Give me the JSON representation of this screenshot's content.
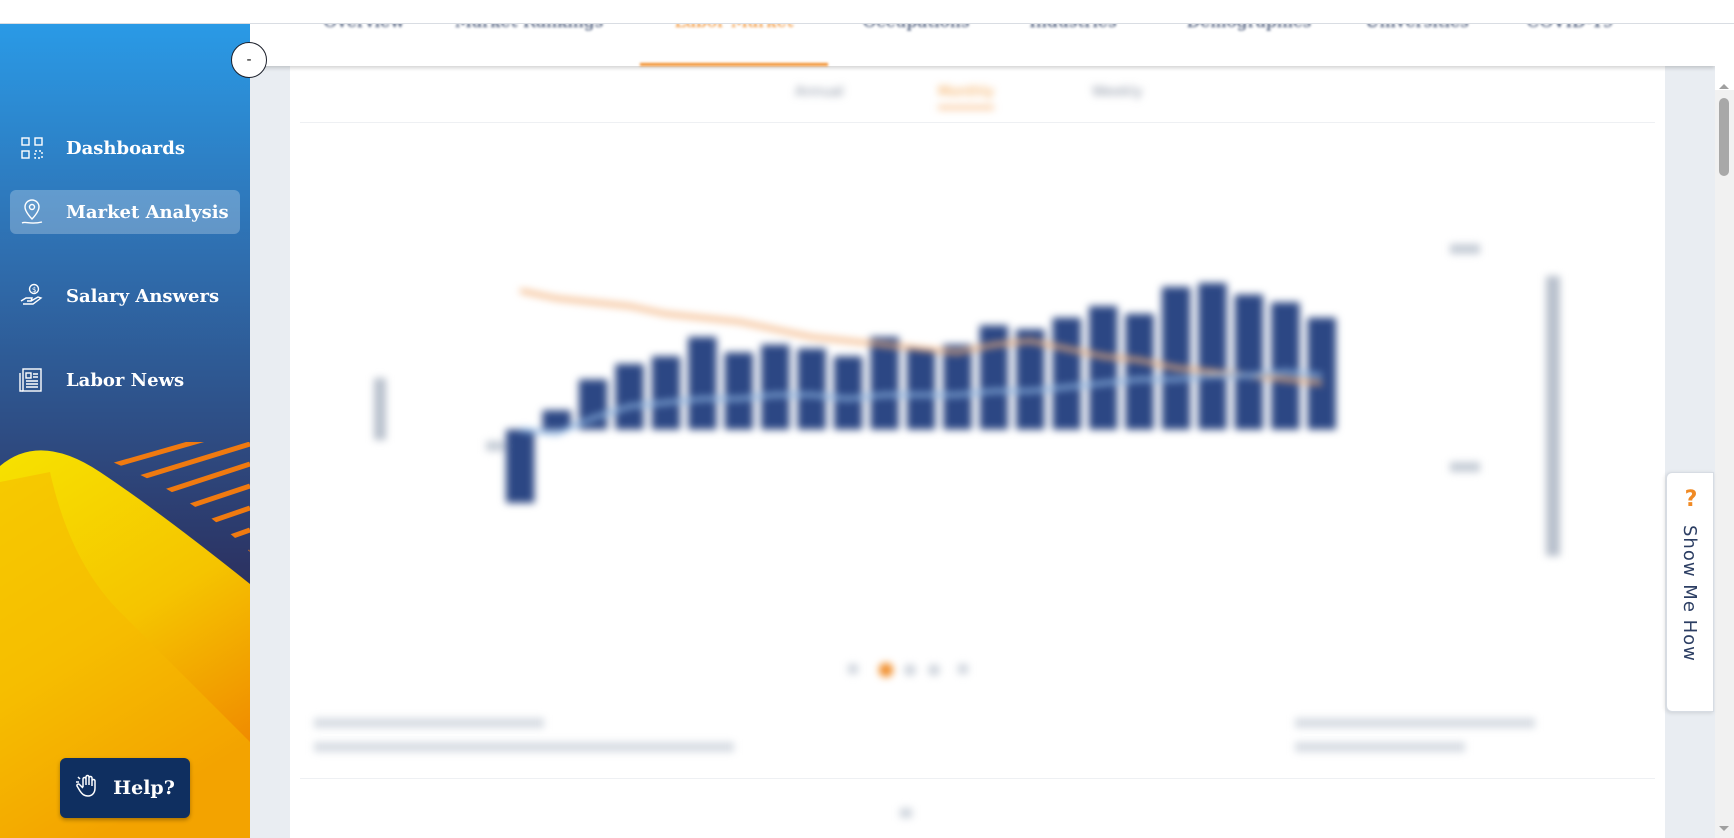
{
  "sidebar": {
    "collapse_label": "-",
    "items": [
      {
        "label": "Dashboards",
        "icon": "dashboard-grid-icon",
        "active": false
      },
      {
        "label": "Market Analysis",
        "icon": "map-pin-icon",
        "active": true
      },
      {
        "label": "Salary Answers",
        "icon": "hand-coin-icon",
        "active": false
      },
      {
        "label": "Labor News",
        "icon": "newspaper-icon",
        "active": false
      }
    ],
    "help_label": "Help?",
    "help_icon": "hand-wave-icon"
  },
  "tabs": [
    {
      "label": "Overview",
      "active": false
    },
    {
      "label": "Market Rankings",
      "active": false
    },
    {
      "label": "Labor Market",
      "active": true
    },
    {
      "label": "Occupations",
      "active": false
    },
    {
      "label": "Industries",
      "active": false
    },
    {
      "label": "Demographics",
      "active": false
    },
    {
      "label": "Universities",
      "active": false
    },
    {
      "label": "COVID-19",
      "active": false
    }
  ],
  "subtabs": [
    {
      "label": "Annual",
      "active": false
    },
    {
      "label": "Monthly",
      "active": true
    },
    {
      "label": "Weekly",
      "active": false
    }
  ],
  "chart_data": {
    "type": "bar",
    "title": "",
    "xlabel": "",
    "ylabel": "",
    "series": [
      {
        "type": "bar",
        "values": [
          -1.9,
          0.5,
          1.3,
          1.7,
          1.9,
          2.4,
          2.0,
          2.2,
          2.1,
          1.9,
          2.4,
          2.1,
          2.2,
          2.7,
          2.6,
          2.9,
          3.2,
          3.0,
          3.7,
          3.8,
          3.5,
          3.3,
          2.9
        ]
      },
      {
        "type": "line",
        "values": [
          3.6,
          3.4,
          3.3,
          3.2,
          3.0,
          2.9,
          2.8,
          2.6,
          2.4,
          2.3,
          2.2,
          2.1,
          2.0,
          2.2,
          2.3,
          2.1,
          1.9,
          1.8,
          1.6,
          1.5,
          1.4,
          1.3,
          1.2
        ]
      },
      {
        "type": "line",
        "values": [
          0.0,
          -0.1,
          0.3,
          0.6,
          0.7,
          0.8,
          0.8,
          0.9,
          0.9,
          0.8,
          0.9,
          0.9,
          0.9,
          1.0,
          1.0,
          1.1,
          1.2,
          1.3,
          1.3,
          1.4,
          1.4,
          1.5,
          1.4
        ]
      }
    ],
    "colors": {
      "bars": "#2c4784",
      "line_primary": "#f2b07a",
      "line_secondary": "#8fb7e4"
    },
    "ylim": [
      -2.5,
      4.5
    ],
    "blurred": true
  },
  "pager": {
    "pages": 3,
    "current": 1
  },
  "show_me_how": "Show Me How",
  "show_me_icon": "question-mark-icon"
}
